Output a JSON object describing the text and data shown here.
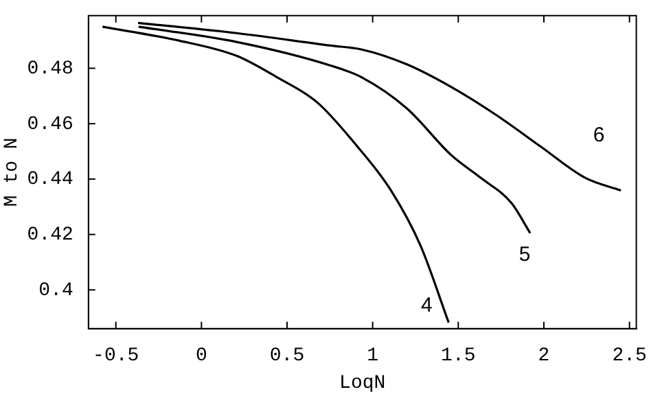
{
  "chart_data": {
    "type": "line",
    "xlabel": "LoqN",
    "ylabel": "M to N",
    "xlim": [
      -0.66,
      2.54
    ],
    "xticks": [
      -0.5,
      0,
      0.5,
      1,
      1.5,
      2,
      2.5
    ],
    "ylim": [
      0.386,
      0.499
    ],
    "yticks": [
      0.4,
      0.42,
      0.44,
      0.46,
      0.48
    ],
    "grid": false,
    "legend": false,
    "marker": "none",
    "line_style": "solid",
    "series": [
      {
        "name": "4",
        "color": "#000000",
        "x": [
          -0.578,
          -0.132,
          0.205,
          0.44,
          0.676,
          0.91,
          1.107,
          1.28,
          1.444
        ],
        "values": [
          0.495,
          0.49,
          0.4845,
          0.4768,
          0.4677,
          0.4518,
          0.4359,
          0.4159,
          0.3882
        ]
      },
      {
        "name": "5",
        "color": "#000000",
        "x": [
          -0.367,
          0.205,
          0.754,
          0.934,
          1.2,
          1.46,
          1.63,
          1.81,
          1.92
        ],
        "values": [
          0.495,
          0.4895,
          0.481,
          0.4768,
          0.4655,
          0.4486,
          0.4405,
          0.4314,
          0.4205
        ]
      },
      {
        "name": "6",
        "color": "#000000",
        "x": [
          -0.37,
          0.205,
          0.754,
          0.934,
          1.2,
          1.46,
          1.72,
          1.98,
          2.24,
          2.45
        ],
        "values": [
          0.4964,
          0.4927,
          0.4882,
          0.4868,
          0.4814,
          0.4732,
          0.4632,
          0.4518,
          0.4405,
          0.4359
        ]
      }
    ]
  }
}
